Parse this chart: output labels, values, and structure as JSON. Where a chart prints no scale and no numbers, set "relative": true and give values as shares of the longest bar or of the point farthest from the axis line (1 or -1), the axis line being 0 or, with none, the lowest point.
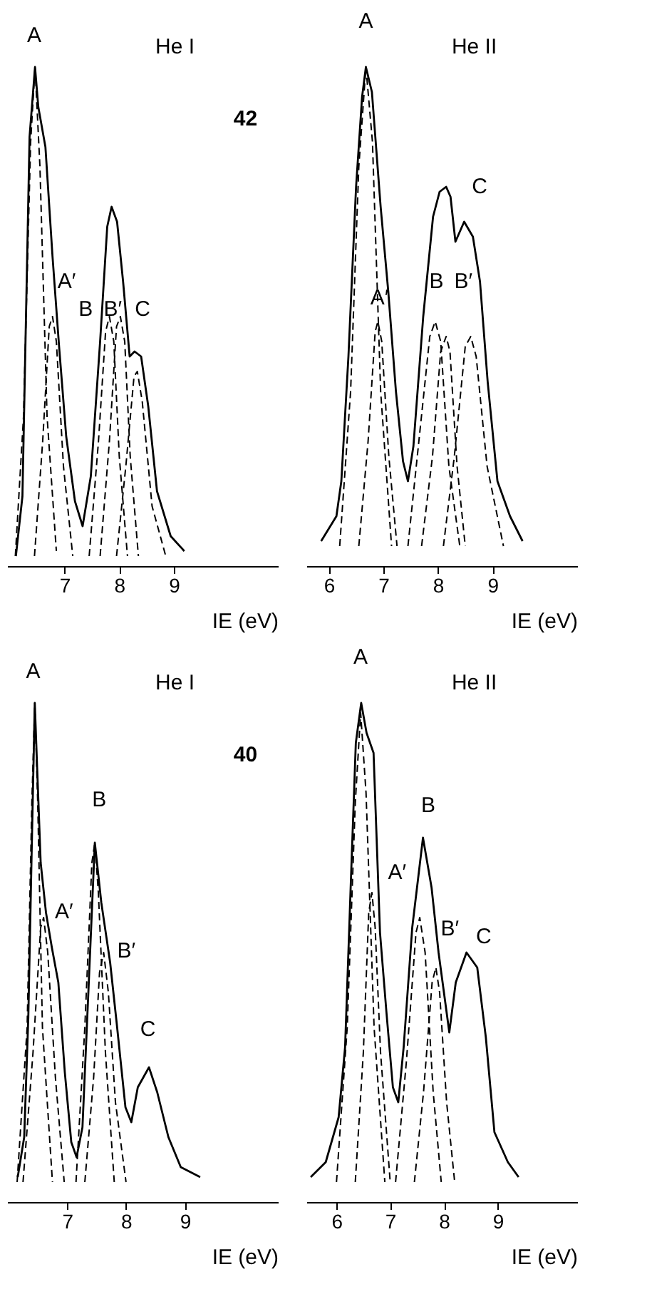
{
  "chart_data": [
    {
      "type": "line",
      "relative": true,
      "xlim": [
        5.95,
        10.9
      ],
      "xticks": [
        7,
        8,
        9
      ],
      "xlabel": "IE (eV)",
      "annotations": [
        "He I",
        "42",
        "A",
        "A′",
        "B",
        "B′",
        "C"
      ],
      "series": [
        {
          "color": "#000000",
          "line_style": "solid",
          "x": [
            6.11,
            6.23,
            6.36,
            6.46,
            6.52,
            6.65,
            6.78,
            6.9,
            7.03,
            7.19,
            7.33,
            7.48,
            7.65,
            7.78,
            7.86,
            7.96,
            8.07,
            8.19,
            8.28,
            8.4,
            8.53,
            8.69,
            8.94,
            9.19
          ],
          "values": [
            0.02,
            0.14,
            0.86,
            1.0,
            0.92,
            0.84,
            0.62,
            0.44,
            0.26,
            0.13,
            0.08,
            0.18,
            0.45,
            0.68,
            0.72,
            0.69,
            0.57,
            0.42,
            0.43,
            0.42,
            0.32,
            0.15,
            0.06,
            0.03
          ]
        },
        {
          "color": "#000000",
          "line_style": "dashed",
          "x": [
            6.1,
            6.25,
            6.38,
            6.46,
            6.55,
            6.68,
            6.85
          ],
          "values": [
            0.02,
            0.3,
            0.85,
            1.0,
            0.8,
            0.3,
            0.03
          ]
        },
        {
          "color": "#000000",
          "line_style": "dashed",
          "x": [
            6.45,
            6.6,
            6.72,
            6.78,
            6.85,
            6.98,
            7.15
          ],
          "values": [
            0.02,
            0.25,
            0.48,
            0.5,
            0.45,
            0.2,
            0.02
          ]
        },
        {
          "color": "#000000",
          "line_style": "dashed",
          "x": [
            7.45,
            7.62,
            7.75,
            7.82,
            7.9,
            8.0,
            8.15
          ],
          "values": [
            0.02,
            0.25,
            0.47,
            0.5,
            0.45,
            0.22,
            0.02
          ]
        },
        {
          "color": "#000000",
          "line_style": "dashed",
          "x": [
            7.65,
            7.82,
            7.95,
            8.02,
            8.1,
            8.2,
            8.35
          ],
          "values": [
            0.02,
            0.25,
            0.48,
            0.5,
            0.45,
            0.22,
            0.02
          ]
        },
        {
          "color": "#000000",
          "line_style": "dashed",
          "x": [
            7.95,
            8.12,
            8.27,
            8.33,
            8.42,
            8.6,
            8.85
          ],
          "values": [
            0.02,
            0.2,
            0.38,
            0.39,
            0.33,
            0.12,
            0.02
          ]
        }
      ]
    },
    {
      "type": "line",
      "relative": true,
      "xlim": [
        5.59,
        10.55
      ],
      "xticks": [
        6,
        7,
        8,
        9
      ],
      "xlabel": "IE (eV)",
      "annotations": [
        "He II",
        "A",
        "A′",
        "B",
        "B′",
        "C"
      ],
      "series": [
        {
          "color": "#000000",
          "line_style": "solid",
          "x": [
            5.86,
            6.14,
            6.23,
            6.36,
            6.5,
            6.61,
            6.68,
            6.79,
            6.95,
            7.09,
            7.23,
            7.36,
            7.45,
            7.55,
            7.73,
            7.91,
            8.03,
            8.15,
            8.23,
            8.32,
            8.48,
            8.64,
            8.77,
            8.91,
            9.09,
            9.32,
            9.55
          ],
          "values": [
            0.05,
            0.1,
            0.17,
            0.42,
            0.76,
            0.94,
            1.0,
            0.95,
            0.72,
            0.55,
            0.35,
            0.21,
            0.17,
            0.24,
            0.5,
            0.7,
            0.75,
            0.76,
            0.74,
            0.65,
            0.69,
            0.66,
            0.57,
            0.37,
            0.17,
            0.1,
            0.05
          ]
        },
        {
          "color": "#000000",
          "line_style": "dashed",
          "x": [
            6.2,
            6.4,
            6.55,
            6.68,
            6.8,
            6.95,
            7.15
          ],
          "values": [
            0.04,
            0.35,
            0.8,
            1.0,
            0.85,
            0.35,
            0.04
          ]
        },
        {
          "color": "#000000",
          "line_style": "dashed",
          "x": [
            6.55,
            6.72,
            6.85,
            6.9,
            6.97,
            7.1,
            7.25
          ],
          "values": [
            0.04,
            0.25,
            0.47,
            0.49,
            0.45,
            0.22,
            0.04
          ]
        },
        {
          "color": "#000000",
          "line_style": "dashed",
          "x": [
            7.45,
            7.65,
            7.85,
            7.95,
            8.05,
            8.2,
            8.4
          ],
          "values": [
            0.04,
            0.25,
            0.46,
            0.49,
            0.45,
            0.2,
            0.04
          ]
        },
        {
          "color": "#000000",
          "line_style": "dashed",
          "x": [
            7.7,
            7.9,
            8.05,
            8.15,
            8.22,
            8.35,
            8.5
          ],
          "values": [
            0.04,
            0.22,
            0.43,
            0.46,
            0.43,
            0.2,
            0.04
          ]
        },
        {
          "color": "#000000",
          "line_style": "dashed",
          "x": [
            8.1,
            8.3,
            8.5,
            8.6,
            8.7,
            8.9,
            9.2
          ],
          "values": [
            0.04,
            0.22,
            0.44,
            0.46,
            0.42,
            0.2,
            0.04
          ]
        }
      ]
    },
    {
      "type": "line",
      "relative": true,
      "xlim": [
        5.98,
        10.58
      ],
      "xticks": [
        7,
        8,
        9
      ],
      "xlabel": "IE (eV)",
      "annotations": [
        "He I",
        "40",
        "A",
        "A′",
        "B",
        "B′",
        "C"
      ],
      "series": [
        {
          "color": "#000000",
          "line_style": "solid",
          "x": [
            6.16,
            6.27,
            6.34,
            6.4,
            6.45,
            6.49,
            6.55,
            6.64,
            6.74,
            6.85,
            6.96,
            7.07,
            7.16,
            7.26,
            7.36,
            7.47,
            7.58,
            7.73,
            7.84,
            7.99,
            8.09,
            8.2,
            8.39,
            8.53,
            8.72,
            8.93,
            9.26
          ],
          "values": [
            0.05,
            0.13,
            0.37,
            0.72,
            1.0,
            0.87,
            0.68,
            0.58,
            0.51,
            0.44,
            0.26,
            0.12,
            0.09,
            0.15,
            0.42,
            0.72,
            0.6,
            0.48,
            0.36,
            0.19,
            0.16,
            0.23,
            0.27,
            0.22,
            0.13,
            0.07,
            0.05
          ]
        },
        {
          "color": "#000000",
          "line_style": "dashed",
          "x": [
            6.15,
            6.32,
            6.4,
            6.45,
            6.5,
            6.58,
            6.75
          ],
          "values": [
            0.04,
            0.35,
            0.8,
            1.0,
            0.8,
            0.35,
            0.04
          ]
        },
        {
          "color": "#000000",
          "line_style": "dashed",
          "x": [
            6.25,
            6.42,
            6.55,
            6.6,
            6.67,
            6.8,
            6.95
          ],
          "values": [
            0.04,
            0.3,
            0.55,
            0.57,
            0.5,
            0.25,
            0.04
          ]
        },
        {
          "color": "#000000",
          "line_style": "dashed",
          "x": [
            7.15,
            7.3,
            7.42,
            7.47,
            7.53,
            7.65,
            7.8
          ],
          "values": [
            0.04,
            0.35,
            0.68,
            0.72,
            0.62,
            0.3,
            0.04
          ]
        },
        {
          "color": "#000000",
          "line_style": "dashed",
          "x": [
            7.3,
            7.45,
            7.55,
            7.62,
            7.7,
            7.82,
            8.0
          ],
          "values": [
            0.04,
            0.25,
            0.46,
            0.5,
            0.42,
            0.2,
            0.04
          ]
        }
      ]
    },
    {
      "type": "line",
      "relative": true,
      "xlim": [
        5.44,
        10.48
      ],
      "xticks": [
        6,
        7,
        8,
        9
      ],
      "xlabel": "IE (eV)",
      "annotations": [
        "He II",
        "A",
        "A′",
        "B",
        "B′",
        "C"
      ],
      "series": [
        {
          "color": "#000000",
          "line_style": "solid",
          "x": [
            5.52,
            5.8,
            6.04,
            6.16,
            6.28,
            6.36,
            6.46,
            6.56,
            6.69,
            6.81,
            6.93,
            7.05,
            7.15,
            7.25,
            7.41,
            7.61,
            7.77,
            7.9,
            8.1,
            8.22,
            8.42,
            8.62,
            8.78,
            8.94,
            9.19,
            9.39
          ],
          "values": [
            0.05,
            0.08,
            0.17,
            0.31,
            0.68,
            0.92,
            1.0,
            0.94,
            0.9,
            0.54,
            0.38,
            0.23,
            0.2,
            0.31,
            0.55,
            0.73,
            0.63,
            0.5,
            0.34,
            0.44,
            0.5,
            0.47,
            0.33,
            0.14,
            0.08,
            0.05
          ]
        },
        {
          "color": "#000000",
          "line_style": "dashed",
          "x": [
            6.0,
            6.2,
            6.35,
            6.45,
            6.55,
            6.7,
            6.9
          ],
          "values": [
            0.04,
            0.35,
            0.8,
            0.98,
            0.82,
            0.35,
            0.04
          ]
        },
        {
          "color": "#000000",
          "line_style": "dashed",
          "x": [
            6.35,
            6.5,
            6.6,
            6.66,
            6.72,
            6.82,
            7.0
          ],
          "values": [
            0.04,
            0.3,
            0.58,
            0.62,
            0.55,
            0.3,
            0.04
          ]
        },
        {
          "color": "#000000",
          "line_style": "dashed",
          "x": [
            7.1,
            7.3,
            7.48,
            7.55,
            7.65,
            7.8,
            7.95
          ],
          "values": [
            0.04,
            0.28,
            0.54,
            0.57,
            0.5,
            0.22,
            0.04
          ]
        },
        {
          "color": "#000000",
          "line_style": "dashed",
          "x": [
            7.45,
            7.62,
            7.78,
            7.85,
            7.92,
            8.05,
            8.2
          ],
          "values": [
            0.04,
            0.22,
            0.44,
            0.47,
            0.42,
            0.2,
            0.04
          ]
        }
      ]
    }
  ]
}
